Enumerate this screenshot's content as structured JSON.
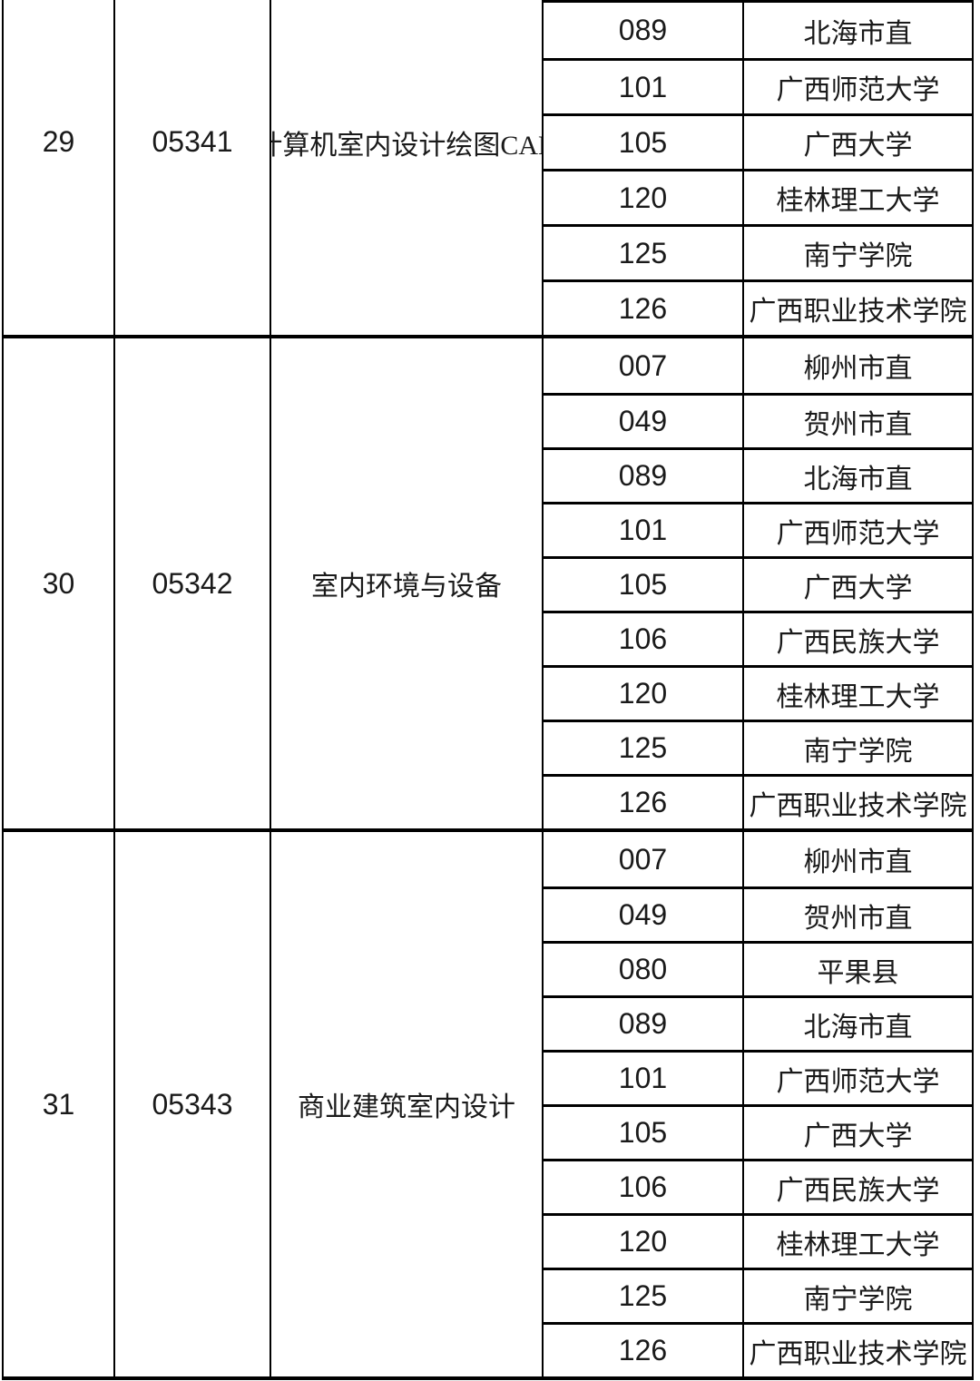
{
  "table": {
    "sections": [
      {
        "seq": "29",
        "code": "05341",
        "course": "计算机室内设计绘图CAD",
        "locations": [
          {
            "code": "089",
            "name": "北海市直"
          },
          {
            "code": "101",
            "name": "广西师范大学"
          },
          {
            "code": "105",
            "name": "广西大学"
          },
          {
            "code": "120",
            "name": "桂林理工大学"
          },
          {
            "code": "125",
            "name": "南宁学院"
          },
          {
            "code": "126",
            "name": "广西职业技术学院"
          }
        ]
      },
      {
        "seq": "30",
        "code": "05342",
        "course": "室内环境与设备",
        "locations": [
          {
            "code": "007",
            "name": "柳州市直"
          },
          {
            "code": "049",
            "name": "贺州市直"
          },
          {
            "code": "089",
            "name": "北海市直"
          },
          {
            "code": "101",
            "name": "广西师范大学"
          },
          {
            "code": "105",
            "name": "广西大学"
          },
          {
            "code": "106",
            "name": "广西民族大学"
          },
          {
            "code": "120",
            "name": "桂林理工大学"
          },
          {
            "code": "125",
            "name": "南宁学院"
          },
          {
            "code": "126",
            "name": "广西职业技术学院"
          }
        ]
      },
      {
        "seq": "31",
        "code": "05343",
        "course": "商业建筑室内设计",
        "locations": [
          {
            "code": "007",
            "name": "柳州市直"
          },
          {
            "code": "049",
            "name": "贺州市直"
          },
          {
            "code": "080",
            "name": "平果县"
          },
          {
            "code": "089",
            "name": "北海市直"
          },
          {
            "code": "101",
            "name": "广西师范大学"
          },
          {
            "code": "105",
            "name": "广西大学"
          },
          {
            "code": "106",
            "name": "广西民族大学"
          },
          {
            "code": "120",
            "name": "桂林理工大学"
          },
          {
            "code": "125",
            "name": "南宁学院"
          },
          {
            "code": "126",
            "name": "广西职业技术学院"
          }
        ]
      }
    ],
    "colors": {
      "border": "#000000",
      "text": "#1a1a1a",
      "background": "#ffffff"
    }
  }
}
